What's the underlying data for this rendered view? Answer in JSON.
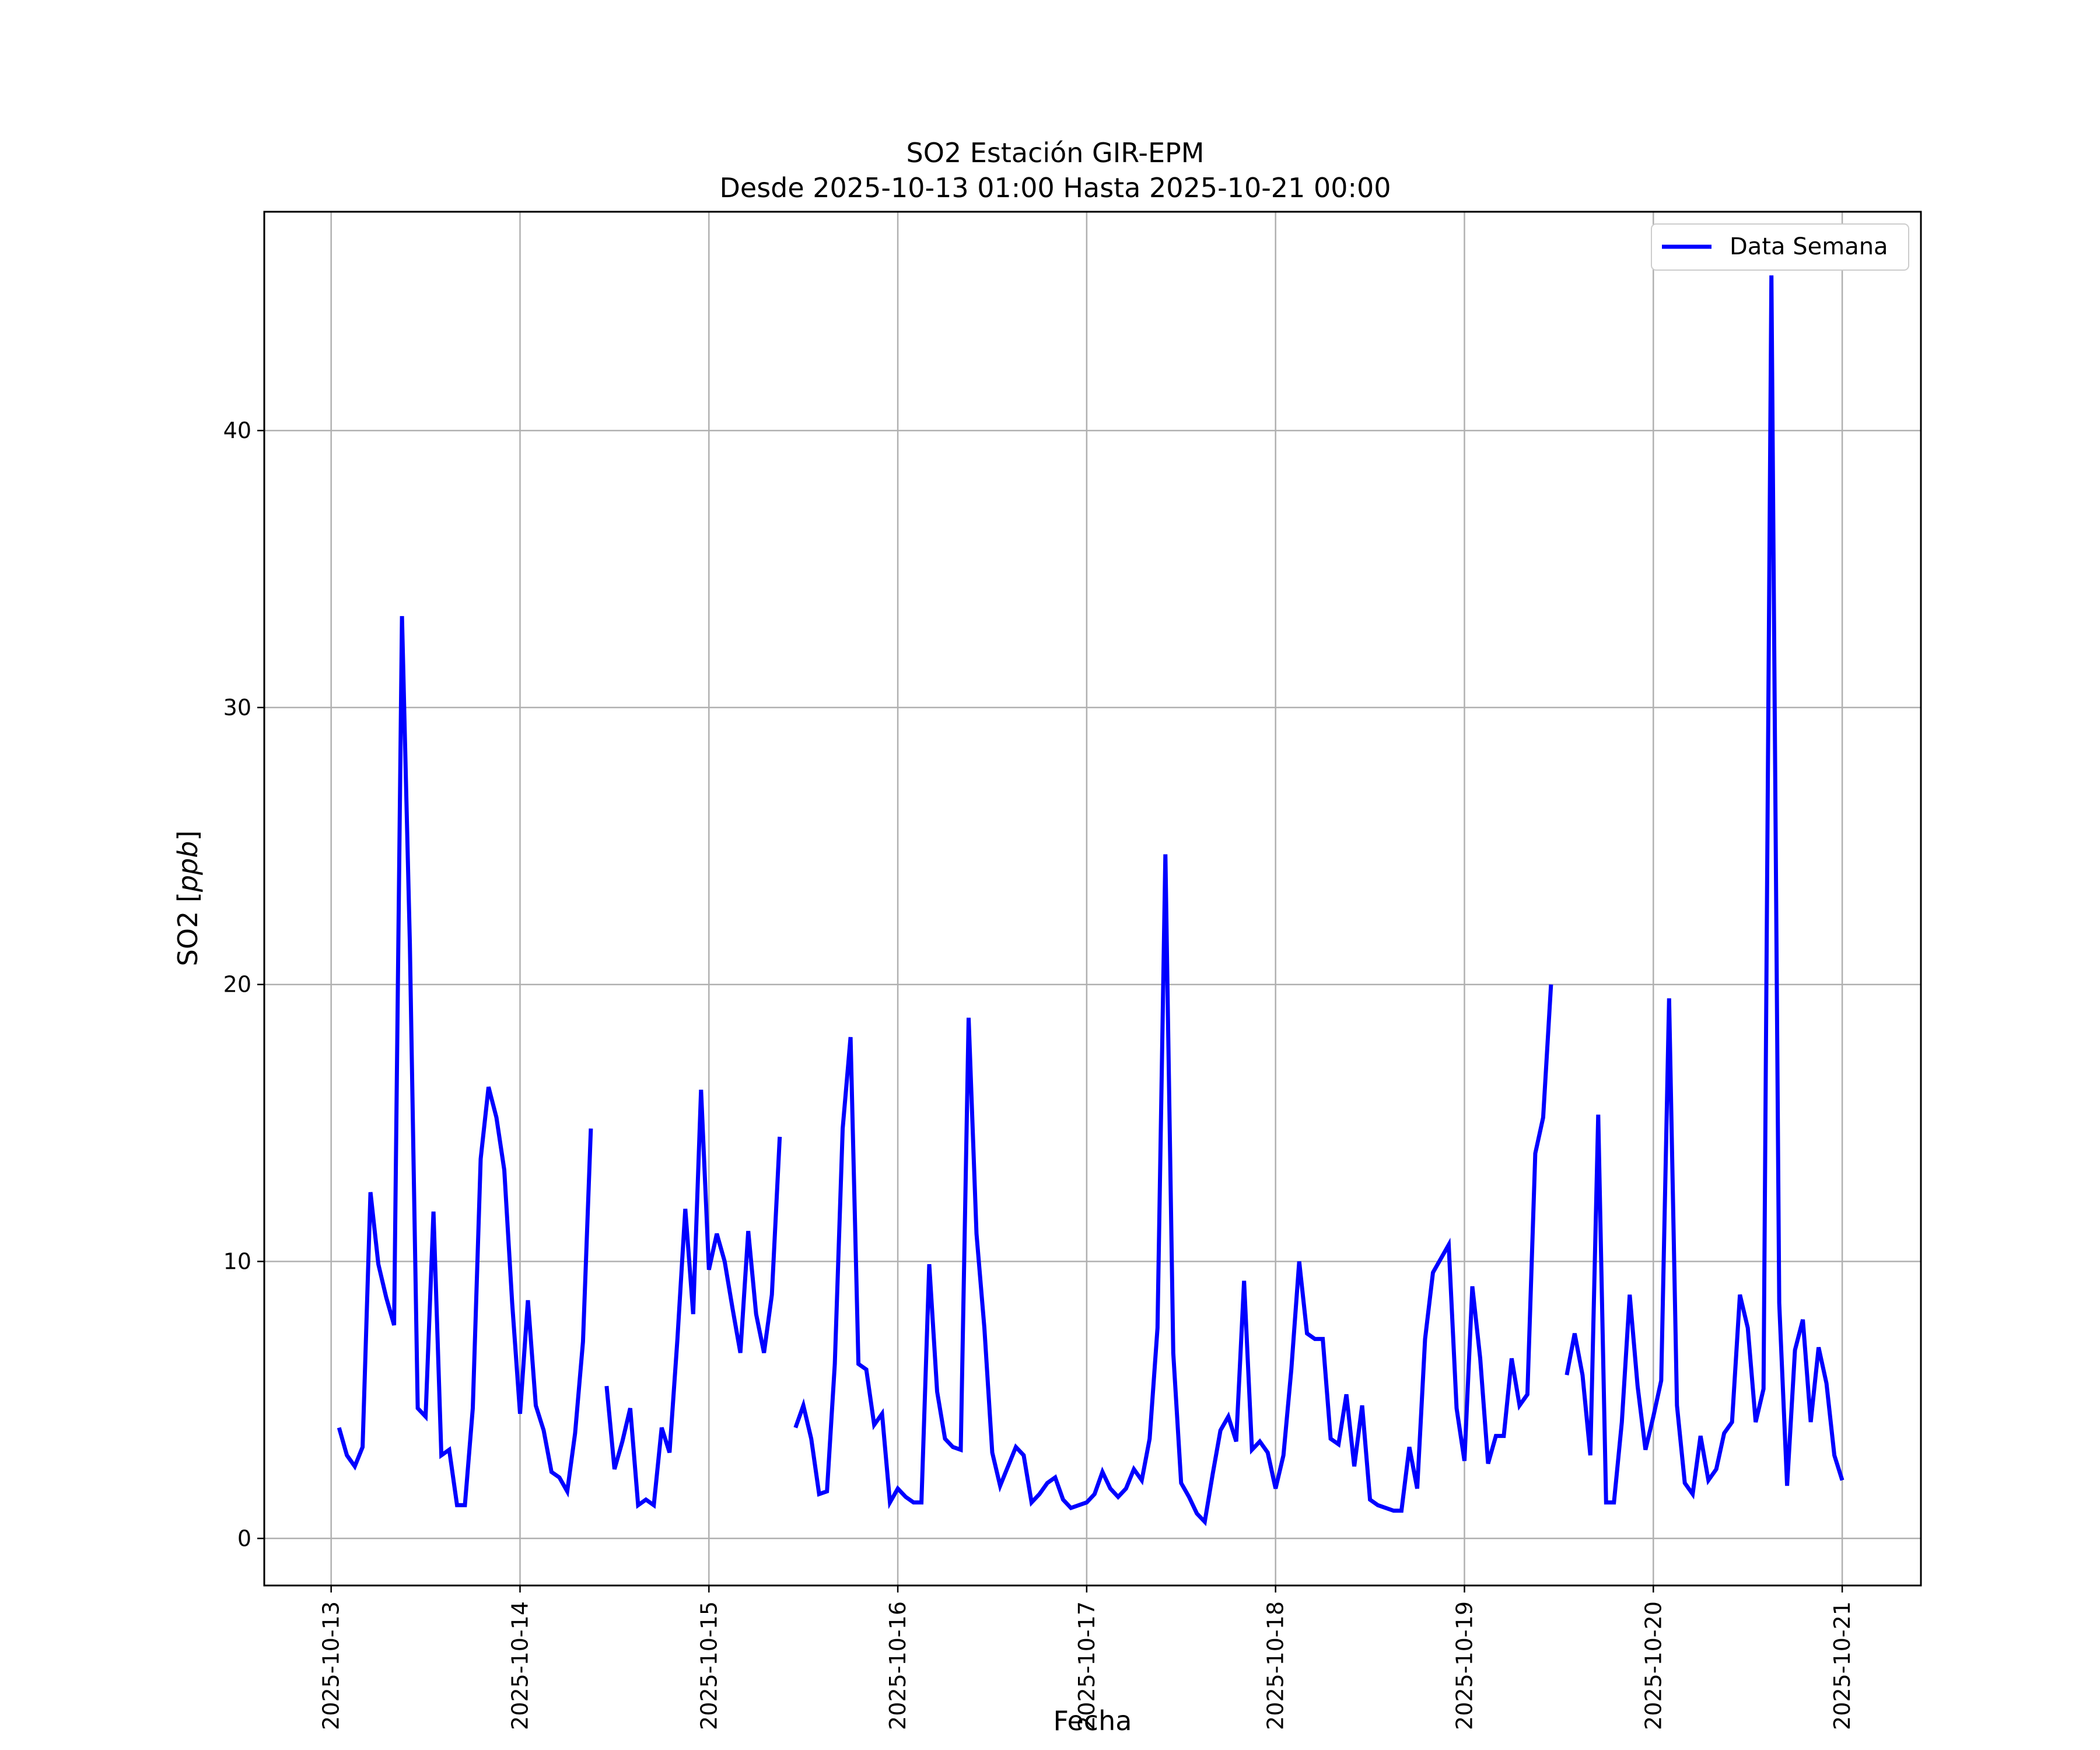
{
  "chart_data": {
    "type": "line",
    "title": "SO2 Estación GIR-EPM",
    "subtitle": "Desde 2025-10-13 01:00 Hasta 2025-10-21 00:00",
    "xlabel": "Fecha",
    "ylabel": "SO2 [ppb]",
    "ylabel_prefix": "SO2 [",
    "ylabel_unit": "ppb",
    "ylabel_suffix": "]",
    "xlim": [
      "2025-10-12 15:30",
      "2025-10-21 10:00"
    ],
    "ylim": [
      -1.7,
      47.9
    ],
    "x_ticks": [
      "2025-10-13",
      "2025-10-14",
      "2025-10-15",
      "2025-10-16",
      "2025-10-17",
      "2025-10-18",
      "2025-10-19",
      "2025-10-20",
      "2025-10-21"
    ],
    "y_ticks": [
      0,
      10,
      20,
      30,
      40
    ],
    "y_tick_labels": [
      "0",
      "10",
      "20",
      "30",
      "40"
    ],
    "grid": true,
    "legend_position": "top-right",
    "series": [
      {
        "name": "Data Semana",
        "color": "#0000ff",
        "points": [
          [
            "2025-10-13 01:00",
            4.0
          ],
          [
            "2025-10-13 02:00",
            3.0
          ],
          [
            "2025-10-13 03:00",
            2.6
          ],
          [
            "2025-10-13 04:00",
            3.3
          ],
          [
            "2025-10-13 05:00",
            12.5
          ],
          [
            "2025-10-13 06:00",
            9.9
          ],
          [
            "2025-10-13 07:00",
            8.7
          ],
          [
            "2025-10-13 08:00",
            7.7
          ],
          [
            "2025-10-13 09:00",
            33.3
          ],
          [
            "2025-10-13 10:00",
            21.5
          ],
          [
            "2025-10-13 11:00",
            4.7
          ],
          [
            "2025-10-13 12:00",
            4.4
          ],
          [
            "2025-10-13 13:00",
            11.8
          ],
          [
            "2025-10-13 14:00",
            3.0
          ],
          [
            "2025-10-13 15:00",
            3.2
          ],
          [
            "2025-10-13 16:00",
            1.2
          ],
          [
            "2025-10-13 17:00",
            1.2
          ],
          [
            "2025-10-13 18:00",
            4.7
          ],
          [
            "2025-10-13 19:00",
            13.7
          ],
          [
            "2025-10-13 20:00",
            16.3
          ],
          [
            "2025-10-13 21:00",
            15.2
          ],
          [
            "2025-10-13 22:00",
            13.3
          ],
          [
            "2025-10-13 23:00",
            8.5
          ],
          [
            "2025-10-14 00:00",
            4.5
          ],
          [
            "2025-10-14 01:00",
            8.6
          ],
          [
            "2025-10-14 02:00",
            4.8
          ],
          [
            "2025-10-14 03:00",
            3.9
          ],
          [
            "2025-10-14 04:00",
            2.4
          ],
          [
            "2025-10-14 05:00",
            2.2
          ],
          [
            "2025-10-14 06:00",
            1.7
          ],
          [
            "2025-10-14 07:00",
            3.8
          ],
          [
            "2025-10-14 08:00",
            7.1
          ],
          [
            "2025-10-14 09:00",
            14.8
          ],
          [
            "2025-10-14 10:00",
            null
          ],
          [
            "2025-10-14 11:00",
            5.5
          ],
          [
            "2025-10-14 12:00",
            2.5
          ],
          [
            "2025-10-14 13:00",
            3.5
          ],
          [
            "2025-10-14 14:00",
            4.7
          ],
          [
            "2025-10-14 15:00",
            1.2
          ],
          [
            "2025-10-14 16:00",
            1.4
          ],
          [
            "2025-10-14 17:00",
            1.2
          ],
          [
            "2025-10-14 18:00",
            4.0
          ],
          [
            "2025-10-14 19:00",
            3.1
          ],
          [
            "2025-10-14 20:00",
            7.2
          ],
          [
            "2025-10-14 21:00",
            11.9
          ],
          [
            "2025-10-14 22:00",
            8.1
          ],
          [
            "2025-10-14 23:00",
            16.2
          ],
          [
            "2025-10-15 00:00",
            9.7
          ],
          [
            "2025-10-15 01:00",
            11.0
          ],
          [
            "2025-10-15 02:00",
            10.0
          ],
          [
            "2025-10-15 03:00",
            8.3
          ],
          [
            "2025-10-15 04:00",
            6.7
          ],
          [
            "2025-10-15 05:00",
            11.1
          ],
          [
            "2025-10-15 06:00",
            8.1
          ],
          [
            "2025-10-15 07:00",
            6.7
          ],
          [
            "2025-10-15 08:00",
            8.8
          ],
          [
            "2025-10-15 09:00",
            14.5
          ],
          [
            "2025-10-15 10:00",
            null
          ],
          [
            "2025-10-15 11:00",
            4.0
          ],
          [
            "2025-10-15 12:00",
            4.8
          ],
          [
            "2025-10-15 13:00",
            3.6
          ],
          [
            "2025-10-15 14:00",
            1.6
          ],
          [
            "2025-10-15 15:00",
            1.7
          ],
          [
            "2025-10-15 16:00",
            6.3
          ],
          [
            "2025-10-15 17:00",
            14.8
          ],
          [
            "2025-10-15 18:00",
            18.1
          ],
          [
            "2025-10-15 19:00",
            6.3
          ],
          [
            "2025-10-15 20:00",
            6.1
          ],
          [
            "2025-10-15 21:00",
            4.1
          ],
          [
            "2025-10-15 22:00",
            4.5
          ],
          [
            "2025-10-15 23:00",
            1.3
          ],
          [
            "2025-10-16 00:00",
            1.8
          ],
          [
            "2025-10-16 01:00",
            1.5
          ],
          [
            "2025-10-16 02:00",
            1.3
          ],
          [
            "2025-10-16 03:00",
            1.3
          ],
          [
            "2025-10-16 04:00",
            9.9
          ],
          [
            "2025-10-16 05:00",
            5.3
          ],
          [
            "2025-10-16 06:00",
            3.6
          ],
          [
            "2025-10-16 07:00",
            3.3
          ],
          [
            "2025-10-16 08:00",
            3.2
          ],
          [
            "2025-10-16 09:00",
            18.8
          ],
          [
            "2025-10-16 10:00",
            11.0
          ],
          [
            "2025-10-16 11:00",
            7.6
          ],
          [
            "2025-10-16 12:00",
            3.1
          ],
          [
            "2025-10-16 13:00",
            1.9
          ],
          [
            "2025-10-16 14:00",
            2.6
          ],
          [
            "2025-10-16 15:00",
            3.3
          ],
          [
            "2025-10-16 16:00",
            3.0
          ],
          [
            "2025-10-16 17:00",
            1.3
          ],
          [
            "2025-10-16 18:00",
            1.6
          ],
          [
            "2025-10-16 19:00",
            2.0
          ],
          [
            "2025-10-16 20:00",
            2.2
          ],
          [
            "2025-10-16 21:00",
            1.4
          ],
          [
            "2025-10-16 22:00",
            1.1
          ],
          [
            "2025-10-16 23:00",
            1.2
          ],
          [
            "2025-10-17 00:00",
            1.3
          ],
          [
            "2025-10-17 01:00",
            1.6
          ],
          [
            "2025-10-17 02:00",
            2.4
          ],
          [
            "2025-10-17 03:00",
            1.8
          ],
          [
            "2025-10-17 04:00",
            1.5
          ],
          [
            "2025-10-17 05:00",
            1.8
          ],
          [
            "2025-10-17 06:00",
            2.5
          ],
          [
            "2025-10-17 07:00",
            2.1
          ],
          [
            "2025-10-17 08:00",
            3.6
          ],
          [
            "2025-10-17 09:00",
            7.6
          ],
          [
            "2025-10-17 10:00",
            24.7
          ],
          [
            "2025-10-17 11:00",
            6.7
          ],
          [
            "2025-10-17 12:00",
            2.0
          ],
          [
            "2025-10-17 13:00",
            1.5
          ],
          [
            "2025-10-17 14:00",
            0.9
          ],
          [
            "2025-10-17 15:00",
            0.6
          ],
          [
            "2025-10-17 16:00",
            2.3
          ],
          [
            "2025-10-17 17:00",
            3.9
          ],
          [
            "2025-10-17 18:00",
            4.4
          ],
          [
            "2025-10-17 19:00",
            3.5
          ],
          [
            "2025-10-17 20:00",
            9.3
          ],
          [
            "2025-10-17 21:00",
            3.2
          ],
          [
            "2025-10-17 22:00",
            3.5
          ],
          [
            "2025-10-17 23:00",
            3.1
          ],
          [
            "2025-10-18 00:00",
            1.8
          ],
          [
            "2025-10-18 01:00",
            3.0
          ],
          [
            "2025-10-18 02:00",
            6.1
          ],
          [
            "2025-10-18 03:00",
            10.0
          ],
          [
            "2025-10-18 04:00",
            7.4
          ],
          [
            "2025-10-18 05:00",
            7.2
          ],
          [
            "2025-10-18 06:00",
            7.2
          ],
          [
            "2025-10-18 07:00",
            3.6
          ],
          [
            "2025-10-18 08:00",
            3.4
          ],
          [
            "2025-10-18 09:00",
            5.2
          ],
          [
            "2025-10-18 10:00",
            2.6
          ],
          [
            "2025-10-18 11:00",
            4.8
          ],
          [
            "2025-10-18 12:00",
            1.4
          ],
          [
            "2025-10-18 13:00",
            1.2
          ],
          [
            "2025-10-18 14:00",
            1.1
          ],
          [
            "2025-10-18 15:00",
            1.0
          ],
          [
            "2025-10-18 16:00",
            1.0
          ],
          [
            "2025-10-18 17:00",
            3.3
          ],
          [
            "2025-10-18 18:00",
            1.8
          ],
          [
            "2025-10-18 19:00",
            7.2
          ],
          [
            "2025-10-18 20:00",
            9.6
          ],
          [
            "2025-10-18 21:00",
            10.1
          ],
          [
            "2025-10-18 22:00",
            10.6
          ],
          [
            "2025-10-18 23:00",
            4.7
          ],
          [
            "2025-10-19 00:00",
            2.8
          ],
          [
            "2025-10-19 01:00",
            9.1
          ],
          [
            "2025-10-19 02:00",
            6.5
          ],
          [
            "2025-10-19 03:00",
            2.7
          ],
          [
            "2025-10-19 04:00",
            3.7
          ],
          [
            "2025-10-19 05:00",
            3.7
          ],
          [
            "2025-10-19 06:00",
            6.5
          ],
          [
            "2025-10-19 07:00",
            4.8
          ],
          [
            "2025-10-19 08:00",
            5.2
          ],
          [
            "2025-10-19 09:00",
            13.9
          ],
          [
            "2025-10-19 10:00",
            15.2
          ],
          [
            "2025-10-19 11:00",
            20.0
          ],
          [
            "2025-10-19 12:00",
            null
          ],
          [
            "2025-10-19 13:00",
            5.9
          ],
          [
            "2025-10-19 14:00",
            7.4
          ],
          [
            "2025-10-19 15:00",
            5.9
          ],
          [
            "2025-10-19 16:00",
            3.0
          ],
          [
            "2025-10-19 17:00",
            15.3
          ],
          [
            "2025-10-19 18:00",
            1.3
          ],
          [
            "2025-10-19 19:00",
            1.3
          ],
          [
            "2025-10-19 20:00",
            4.2
          ],
          [
            "2025-10-19 21:00",
            8.8
          ],
          [
            "2025-10-19 22:00",
            5.5
          ],
          [
            "2025-10-19 23:00",
            3.2
          ],
          [
            "2025-10-20 00:00",
            4.4
          ],
          [
            "2025-10-20 01:00",
            5.7
          ],
          [
            "2025-10-20 02:00",
            19.5
          ],
          [
            "2025-10-20 03:00",
            4.8
          ],
          [
            "2025-10-20 04:00",
            2.0
          ],
          [
            "2025-10-20 05:00",
            1.6
          ],
          [
            "2025-10-20 06:00",
            3.7
          ],
          [
            "2025-10-20 07:00",
            2.1
          ],
          [
            "2025-10-20 08:00",
            2.5
          ],
          [
            "2025-10-20 09:00",
            3.8
          ],
          [
            "2025-10-20 10:00",
            4.2
          ],
          [
            "2025-10-20 11:00",
            8.8
          ],
          [
            "2025-10-20 12:00",
            7.6
          ],
          [
            "2025-10-20 13:00",
            4.2
          ],
          [
            "2025-10-20 14:00",
            5.4
          ],
          [
            "2025-10-20 15:00",
            45.6
          ],
          [
            "2025-10-20 16:00",
            8.5
          ],
          [
            "2025-10-20 17:00",
            1.9
          ],
          [
            "2025-10-20 18:00",
            6.8
          ],
          [
            "2025-10-20 19:00",
            7.9
          ],
          [
            "2025-10-20 20:00",
            4.2
          ],
          [
            "2025-10-20 21:00",
            6.9
          ],
          [
            "2025-10-20 22:00",
            5.6
          ],
          [
            "2025-10-20 23:00",
            3.0
          ],
          [
            "2025-10-21 00:00",
            2.1
          ]
        ]
      }
    ]
  }
}
